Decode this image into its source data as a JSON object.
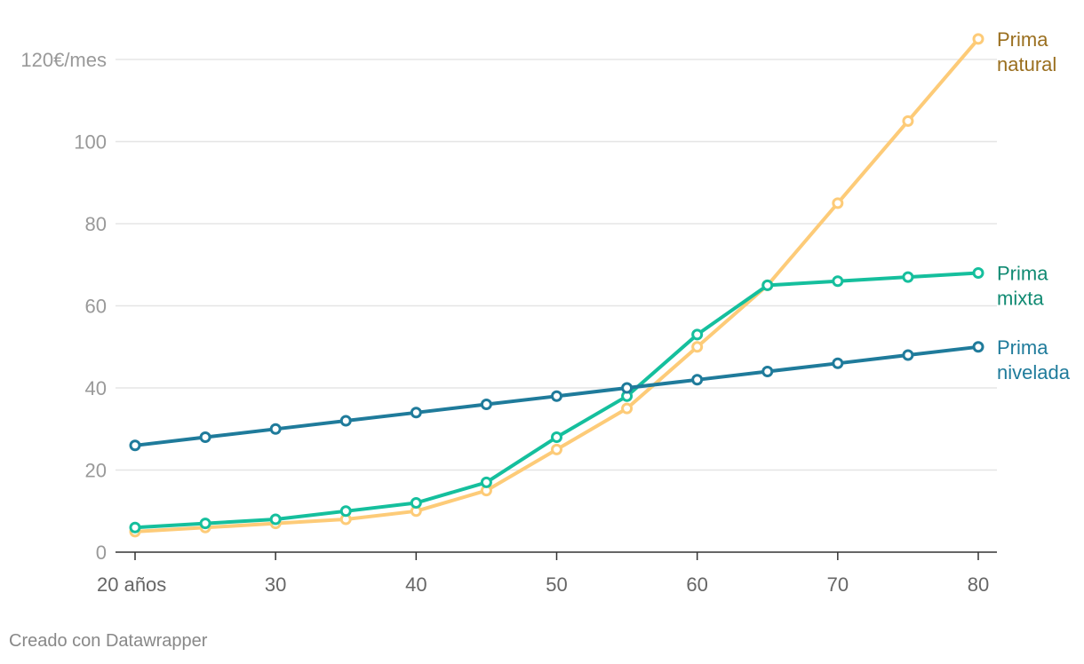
{
  "chart_data": {
    "type": "line",
    "x": [
      20,
      25,
      30,
      35,
      40,
      45,
      50,
      55,
      60,
      65,
      70,
      75,
      80
    ],
    "xticks": [
      20,
      30,
      40,
      50,
      60,
      70,
      80
    ],
    "xtick_labels": [
      "20 años",
      "30",
      "40",
      "50",
      "60",
      "70",
      "80"
    ],
    "xlim": [
      20,
      80
    ],
    "yticks": [
      0,
      20,
      40,
      60,
      80,
      100,
      120
    ],
    "ytick_labels": [
      "0",
      "20",
      "40",
      "60",
      "80",
      "100",
      "120€/mes"
    ],
    "ylim": [
      0,
      120
    ],
    "grid": true,
    "legend": "direct labels at line ends (right)",
    "series": [
      {
        "name": "Prima natural",
        "label_lines": [
          "Prima",
          "natural"
        ],
        "color": "#fdcb78",
        "label_color": "#9a6f1f",
        "values": [
          5,
          6,
          7,
          8,
          10,
          15,
          25,
          35,
          50,
          65,
          85,
          105,
          125
        ]
      },
      {
        "name": "Prima mixta",
        "label_lines": [
          "Prima",
          "mixta"
        ],
        "color": "#15bf9d",
        "label_color": "#108a72",
        "values": [
          6,
          7,
          8,
          10,
          12,
          17,
          28,
          38,
          53,
          65,
          66,
          67,
          68
        ]
      },
      {
        "name": "Prima nivelada",
        "label_lines": [
          "Prima",
          "nivelada"
        ],
        "color": "#1f7b9b",
        "label_color": "#1f7b9b",
        "values": [
          26,
          28,
          30,
          32,
          34,
          36,
          38,
          40,
          42,
          44,
          46,
          48,
          50
        ]
      }
    ]
  },
  "footer": {
    "credit": "Creado con Datawrapper"
  }
}
